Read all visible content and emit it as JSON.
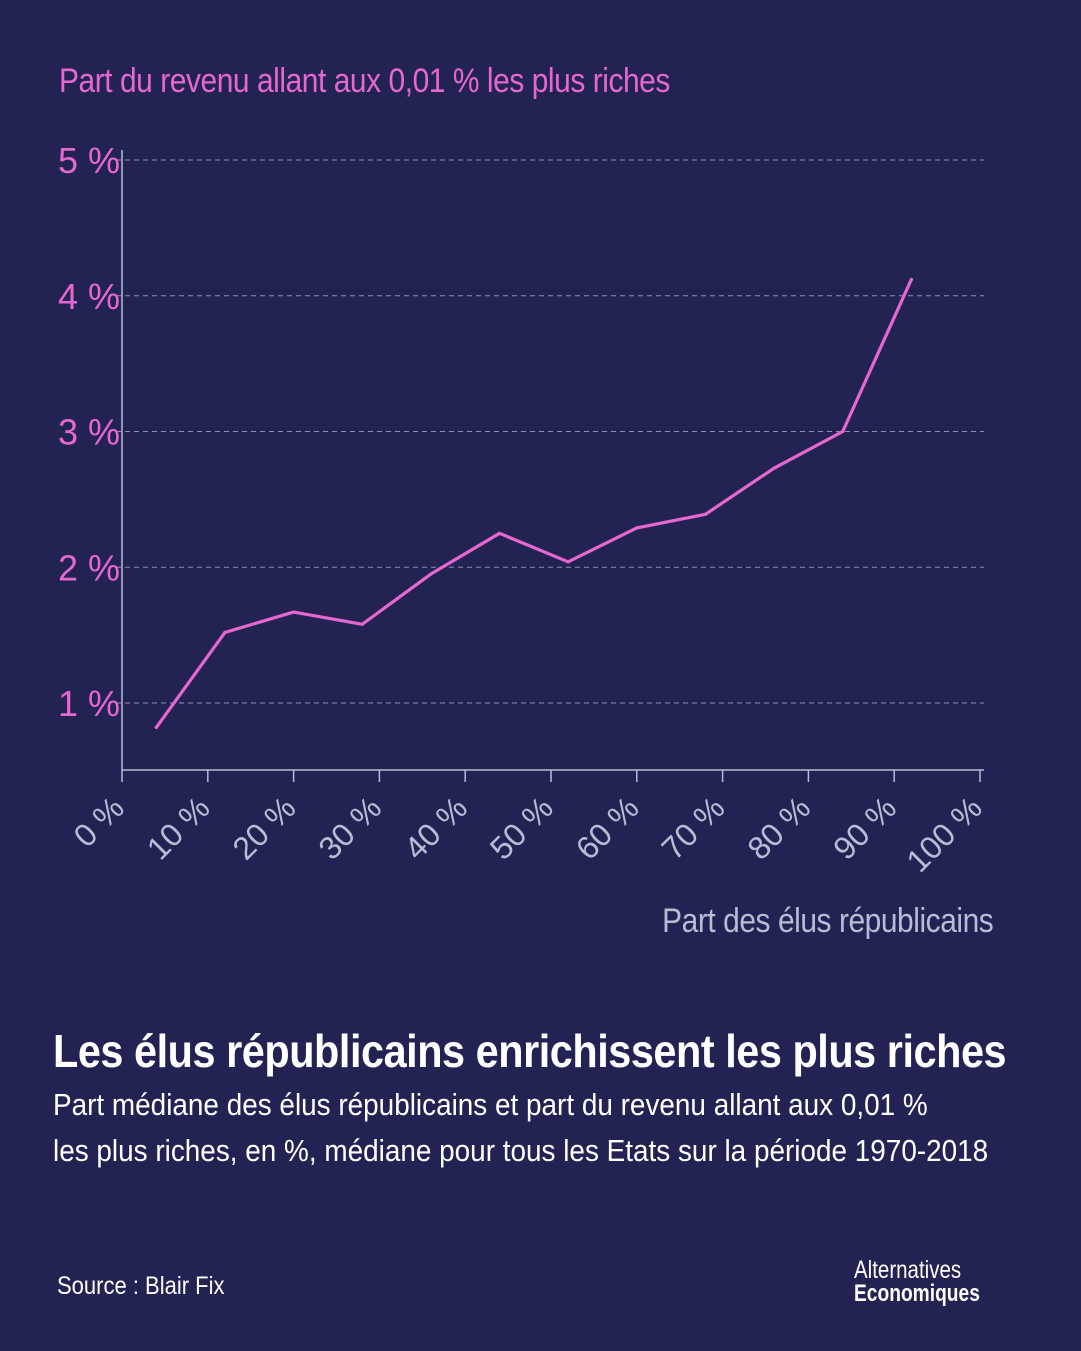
{
  "chart_data": {
    "type": "line",
    "title": "Les élus républicains enrichissent les plus riches",
    "subtitle_lines": [
      "Part médiane des élus républicains et part du revenu allant aux 0,01 %",
      "les plus riches, en %, médiane pour tous les Etats sur la période 1970-2018"
    ],
    "ylabel": "Part du revenu allant aux 0,01 % les plus riches",
    "xlabel": "Part des élus républicains",
    "ylim": [
      0.5,
      5
    ],
    "xlim": [
      0,
      100
    ],
    "y_ticks": [
      1,
      2,
      3,
      4,
      5
    ],
    "y_tick_labels": [
      "1 %",
      "2 %",
      "3 %",
      "4 %",
      "5 %"
    ],
    "x_ticks": [
      0,
      10,
      20,
      30,
      40,
      50,
      60,
      70,
      80,
      90,
      100
    ],
    "x_tick_labels": [
      "0 %",
      "10 %",
      "20 %",
      "30 %",
      "40 %",
      "50 %",
      "60 %",
      "70 %",
      "80 %",
      "90 %",
      "100 %"
    ],
    "grid": "horizontal-dashed",
    "series": [
      {
        "name": "Part du revenu allant aux 0,01 % les plus riches",
        "color": "#e567cf",
        "x": [
          4,
          12,
          20,
          28,
          36,
          44,
          52,
          60,
          68,
          76,
          84,
          92
        ],
        "y": [
          0.82,
          1.52,
          1.67,
          1.58,
          1.95,
          2.25,
          2.04,
          2.29,
          2.39,
          2.73,
          3.0,
          4.12
        ]
      }
    ]
  },
  "footer": {
    "source": "Source : Blair Fix",
    "logo_line1": "Alternatives",
    "logo_line2": "Economiques"
  },
  "colors": {
    "background": "#222353",
    "accent": "#e567cf",
    "axis": "#b9bcd6",
    "text": "#ffffff"
  }
}
